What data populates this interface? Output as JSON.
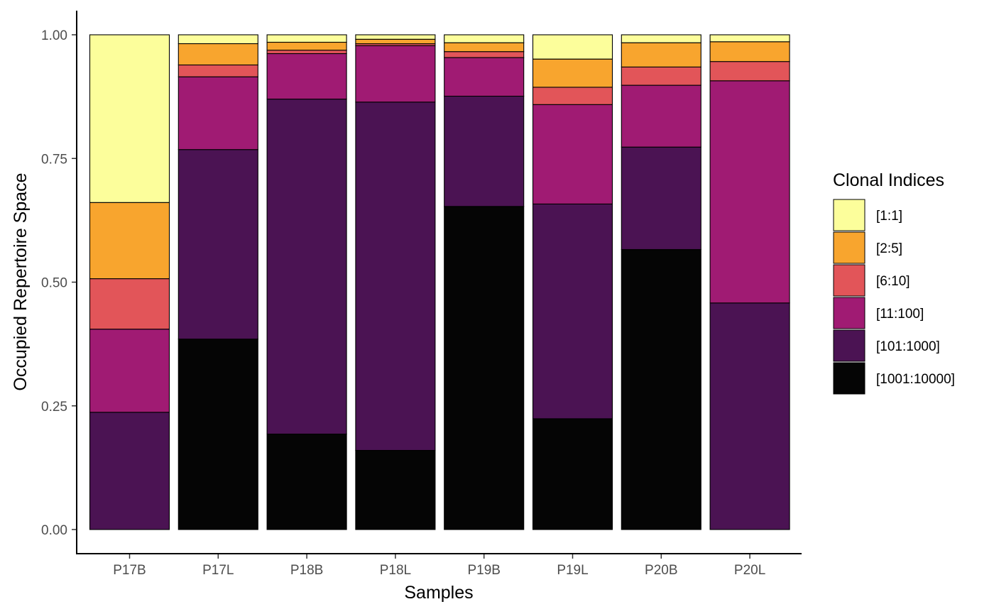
{
  "chart_data": {
    "type": "bar",
    "stacked": true,
    "title": "",
    "xlabel": "Samples",
    "ylabel": "Occupied Repertoire Space",
    "ylim": [
      0,
      1
    ],
    "yticks": [
      "0.00",
      "0.25",
      "0.50",
      "0.75",
      "1.00"
    ],
    "ytick_values": [
      0,
      0.25,
      0.5,
      0.75,
      1.0
    ],
    "grid": false,
    "legend_position": "right",
    "legend_title": "Clonal Indices",
    "categories": [
      "P17B",
      "P17L",
      "P18B",
      "P18L",
      "P19B",
      "P19L",
      "P20B",
      "P20L"
    ],
    "series": [
      {
        "name": "[1001:10000]",
        "color": "#050505",
        "values": [
          0.0,
          0.385,
          0.193,
          0.16,
          0.653,
          0.224,
          0.566,
          0.0
        ]
      },
      {
        "name": "[101:1000]",
        "color": "#4b1353",
        "values": [
          0.237,
          0.383,
          0.677,
          0.704,
          0.223,
          0.434,
          0.207,
          0.458
        ]
      },
      {
        "name": "[11:100]",
        "color": "#a01b73",
        "values": [
          0.168,
          0.147,
          0.092,
          0.114,
          0.078,
          0.201,
          0.125,
          0.449
        ]
      },
      {
        "name": "[6:10]",
        "color": "#e25559",
        "values": [
          0.102,
          0.024,
          0.007,
          0.004,
          0.012,
          0.035,
          0.037,
          0.039
        ]
      },
      {
        "name": "[2:5]",
        "color": "#f8a52e",
        "values": [
          0.154,
          0.043,
          0.016,
          0.009,
          0.018,
          0.057,
          0.049,
          0.04
        ]
      },
      {
        "name": "[1:1]",
        "color": "#fcfe9b",
        "values": [
          0.339,
          0.018,
          0.015,
          0.009,
          0.016,
          0.049,
          0.016,
          0.014
        ]
      }
    ],
    "legend_order": [
      "[1:1]",
      "[2:5]",
      "[6:10]",
      "[11:100]",
      "[101:1000]",
      "[1001:10000]"
    ]
  }
}
